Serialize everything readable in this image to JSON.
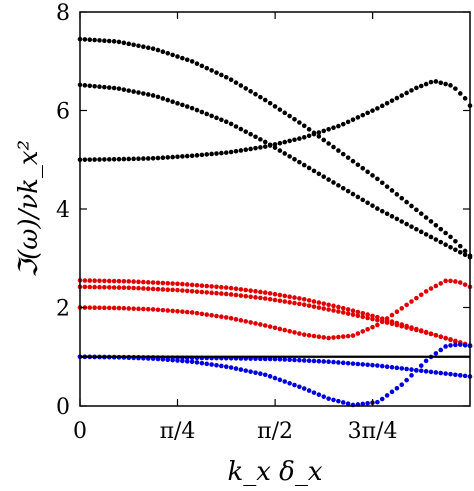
{
  "chart_data": {
    "type": "scatter",
    "title": "",
    "xlabel": "k_x δ_x",
    "ylabel": "ℑ(ω)/νk_x²",
    "xlim": [
      0,
      3.14
    ],
    "ylim": [
      0,
      8
    ],
    "xtick_values": [
      0,
      0.785,
      1.571,
      2.356
    ],
    "xtick_labels": [
      "0",
      "π/4",
      "π/2",
      "3π/4"
    ],
    "ytick_values": [
      0,
      2,
      4,
      6,
      8
    ],
    "ytick_labels": [
      "0",
      "2",
      "4",
      "6",
      "8"
    ],
    "grid": false,
    "legend": "none",
    "series": [
      {
        "color": "#000000",
        "style": "dots",
        "x": [
          0,
          0.3,
          0.6,
          0.9,
          1.2,
          1.5,
          1.8,
          2.1,
          2.4,
          2.7,
          3.0,
          3.14
        ],
        "y": [
          7.45,
          7.4,
          7.25,
          7.0,
          6.65,
          6.2,
          5.7,
          5.15,
          4.6,
          4.0,
          3.4,
          3.05
        ]
      },
      {
        "color": "#000000",
        "style": "dots",
        "x": [
          0,
          0.3,
          0.6,
          0.9,
          1.2,
          1.5,
          1.8,
          2.1,
          2.4,
          2.7,
          3.0,
          3.14
        ],
        "y": [
          6.52,
          6.45,
          6.3,
          6.05,
          5.75,
          5.35,
          4.9,
          4.45,
          4.0,
          3.6,
          3.2,
          3.02
        ]
      },
      {
        "color": "#000000",
        "style": "dots",
        "x": [
          0,
          0.3,
          0.6,
          0.9,
          1.2,
          1.5,
          1.8,
          2.1,
          2.4,
          2.7,
          2.85,
          3.0,
          3.1,
          3.14
        ],
        "y": [
          5.0,
          5.01,
          5.03,
          5.08,
          5.15,
          5.27,
          5.45,
          5.7,
          6.05,
          6.45,
          6.6,
          6.5,
          6.25,
          6.1
        ]
      },
      {
        "color": "#e00000",
        "style": "dots",
        "x": [
          0,
          0.4,
          0.8,
          1.2,
          1.5,
          1.8,
          2.1,
          2.4,
          2.7,
          3.0,
          3.14
        ],
        "y": [
          2.55,
          2.53,
          2.48,
          2.4,
          2.3,
          2.17,
          2.0,
          1.8,
          1.57,
          1.33,
          1.22
        ]
      },
      {
        "color": "#e00000",
        "style": "dots",
        "x": [
          0,
          0.4,
          0.8,
          1.2,
          1.5,
          1.8,
          2.1,
          2.4,
          2.7,
          3.0,
          3.14
        ],
        "y": [
          2.42,
          2.4,
          2.35,
          2.27,
          2.18,
          2.06,
          1.91,
          1.74,
          1.55,
          1.34,
          1.23
        ]
      },
      {
        "color": "#e00000",
        "style": "dots",
        "x": [
          0,
          0.3,
          0.6,
          0.9,
          1.2,
          1.5,
          1.8,
          2.0,
          2.2,
          2.4,
          2.6,
          2.8,
          2.95,
          3.05,
          3.14
        ],
        "y": [
          2.0,
          1.99,
          1.96,
          1.9,
          1.79,
          1.63,
          1.45,
          1.38,
          1.43,
          1.65,
          2.0,
          2.35,
          2.55,
          2.52,
          2.42
        ]
      },
      {
        "color": "#0000e0",
        "style": "dots",
        "x": [
          0,
          0.3,
          0.6,
          0.9,
          1.2,
          1.5,
          1.8,
          2.0,
          2.2,
          2.4,
          2.6,
          2.8,
          2.95,
          3.05,
          3.14
        ],
        "y": [
          1.0,
          0.99,
          0.96,
          0.9,
          0.79,
          0.63,
          0.36,
          0.15,
          0.02,
          0.08,
          0.45,
          0.95,
          1.22,
          1.25,
          1.22
        ]
      },
      {
        "color": "#0000e0",
        "style": "dots",
        "x": [
          0,
          0.4,
          0.8,
          1.2,
          1.6,
          2.0,
          2.4,
          2.8,
          3.14
        ],
        "y": [
          1.0,
          0.99,
          0.98,
          0.97,
          0.95,
          0.9,
          0.82,
          0.7,
          0.6
        ]
      },
      {
        "color": "#000000",
        "style": "line",
        "x": [
          0,
          3.14
        ],
        "y": [
          1.0,
          1.0
        ]
      }
    ]
  }
}
